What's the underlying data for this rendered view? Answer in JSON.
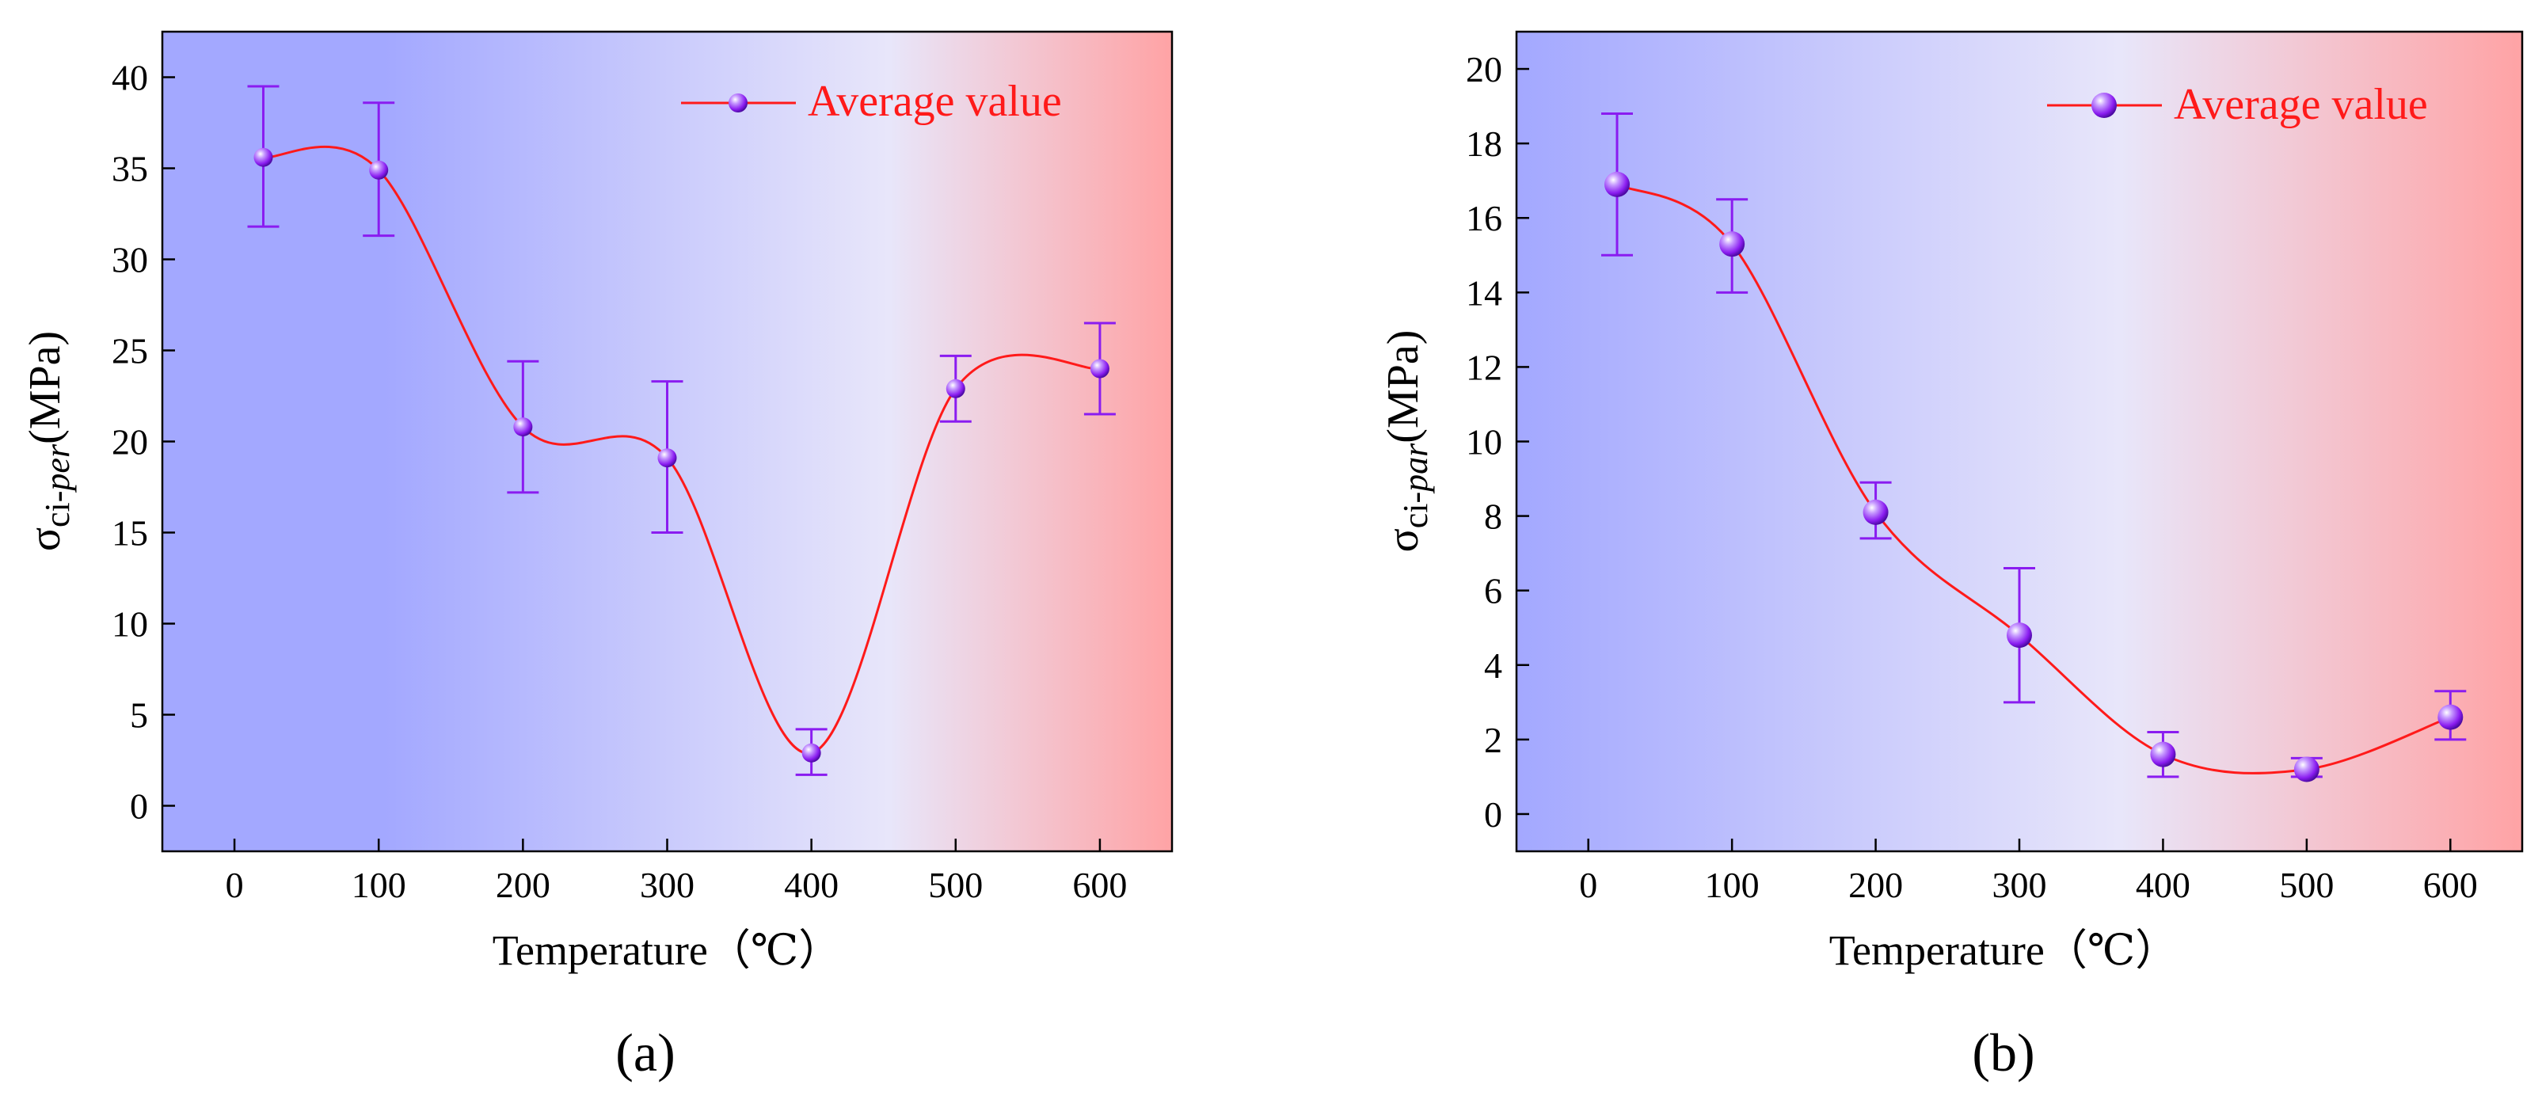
{
  "panels": [
    {
      "panel_label": "(a)",
      "legend_label": "Average value",
      "xlabel": "Temperature（℃）",
      "ylabel_main": "σ",
      "ylabel_sub_plain": "ci-",
      "ylabel_sub_italic": "per",
      "ylabel_unit": "(MPa)"
    },
    {
      "panel_label": "(b)",
      "legend_label": "Average value",
      "xlabel": "Temperature（℃）",
      "ylabel_main": "σ",
      "ylabel_sub_plain": "ci-",
      "ylabel_sub_italic": "par",
      "ylabel_unit": "(MPa)"
    }
  ],
  "colors": {
    "line": "#ff1a1a",
    "marker": "#8a1cf0",
    "errorbar": "#8a1cf0",
    "gradient_left": "#a3a8ff",
    "gradient_mid": "#e8e6fa",
    "gradient_right": "#ffa3a5"
  },
  "chart_data": [
    {
      "type": "scatter",
      "x": [
        20,
        100,
        200,
        300,
        400,
        500,
        600
      ],
      "series": [
        {
          "name": "Average value",
          "values": [
            35.6,
            34.9,
            20.8,
            19.1,
            2.9,
            22.9,
            24.0
          ],
          "error_low": [
            31.8,
            31.3,
            17.2,
            15.0,
            1.7,
            21.1,
            21.5
          ],
          "error_high": [
            39.5,
            38.6,
            24.4,
            23.3,
            4.2,
            24.7,
            26.5
          ],
          "smooth_line": true
        }
      ],
      "xlim": [
        -50,
        650
      ],
      "ylim": [
        -2.5,
        42.5
      ],
      "xticks": [
        0,
        100,
        200,
        300,
        400,
        500,
        600
      ],
      "yticks": [
        0,
        5,
        10,
        15,
        20,
        25,
        30,
        35,
        40
      ],
      "xlabel": "Temperature（℃）",
      "ylabel": "σci-per(MPa)",
      "grid": false,
      "legend_position": "top-right"
    },
    {
      "type": "scatter",
      "x": [
        20,
        100,
        200,
        300,
        400,
        500,
        600
      ],
      "series": [
        {
          "name": "Average value",
          "values": [
            16.9,
            15.3,
            8.1,
            4.8,
            1.6,
            1.2,
            2.6
          ],
          "error_low": [
            15.0,
            14.0,
            7.4,
            3.0,
            1.0,
            1.0,
            2.0
          ],
          "error_high": [
            18.8,
            16.5,
            8.9,
            6.6,
            2.2,
            1.5,
            3.3
          ],
          "smooth_line": true
        }
      ],
      "xlim": [
        -50,
        650
      ],
      "ylim": [
        -1,
        21
      ],
      "xticks": [
        0,
        100,
        200,
        300,
        400,
        500,
        600
      ],
      "yticks": [
        0,
        2,
        4,
        6,
        8,
        10,
        12,
        14,
        16,
        18,
        20
      ],
      "xlabel": "Temperature（℃）",
      "ylabel": "σci-par(MPa)",
      "grid": false,
      "legend_position": "top-right"
    }
  ]
}
